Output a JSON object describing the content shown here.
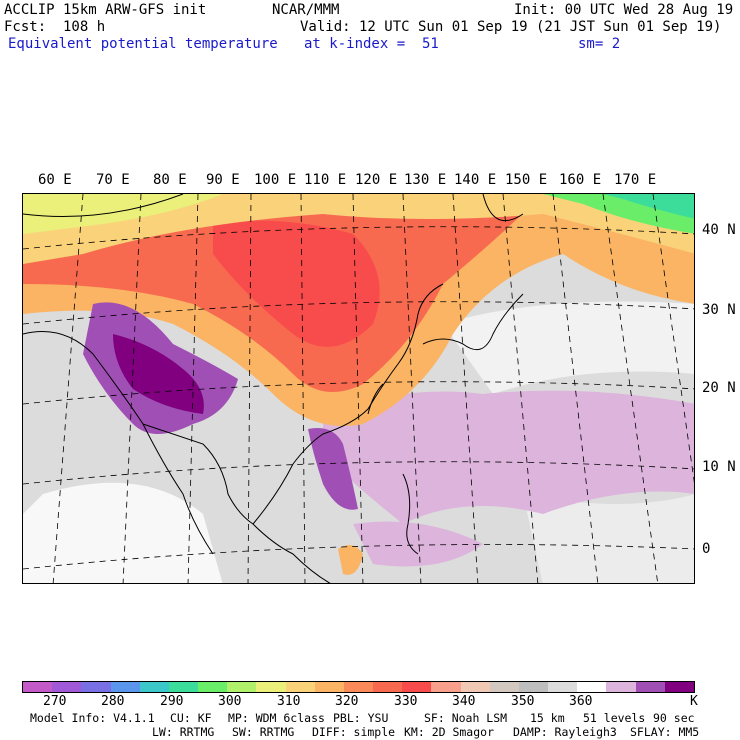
{
  "header": {
    "model": "ACCLIP 15km ARW-GFS init",
    "center": "NCAR/MMM",
    "init": "Init: 00 UTC Wed 28 Aug 19",
    "fcst": "Fcst:  108 h",
    "valid": "Valid: 12 UTC Sun 01 Sep 19 (21 JST Sun 01 Sep 19)",
    "field": "Equivalent potential temperature",
    "level": "at k-index =  51",
    "smooth": "sm= 2"
  },
  "map": {
    "lon_labels": [
      "60 E",
      "70 E",
      "80 E",
      "90 E",
      "100 E",
      "110 E",
      "120 E",
      "130 E",
      "140 E",
      "150 E",
      "160 E",
      "170 E"
    ],
    "lat_labels": [
      "40 N",
      "30 N",
      "20 N",
      "10 N",
      "0"
    ]
  },
  "colorbar": {
    "colors": [
      "#c45ac8",
      "#a05ad8",
      "#7a70e6",
      "#5a96ec",
      "#3cc8c8",
      "#3cdc9a",
      "#6aee6a",
      "#b0f06a",
      "#eaf07a",
      "#fad27a",
      "#fab464",
      "#fa8a5a",
      "#f86a50",
      "#f84c4c",
      "#f8a08c",
      "#f0c8b4",
      "#d2c8c0",
      "#bebebe",
      "#dcdcdc",
      "#ffffff",
      "#dcb4dc",
      "#a050b4",
      "#800080"
    ],
    "labels": [
      "270",
      "280",
      "290",
      "300",
      "310",
      "320",
      "330",
      "340",
      "350",
      "360"
    ],
    "unit": "K"
  },
  "footer": {
    "line1": [
      "Model Info: V4.1.1",
      "CU: KF",
      "MP: WDM 6class",
      "PBL: YSU",
      "SF: Noah LSM",
      "15 km",
      "51 levels",
      "90 sec"
    ],
    "line2": [
      "LW: RRTMG",
      "SW: RRTMG",
      "DIFF: simple",
      "KM: 2D Smagor",
      "DAMP: Rayleigh3",
      "SFLAY: MM5"
    ]
  }
}
